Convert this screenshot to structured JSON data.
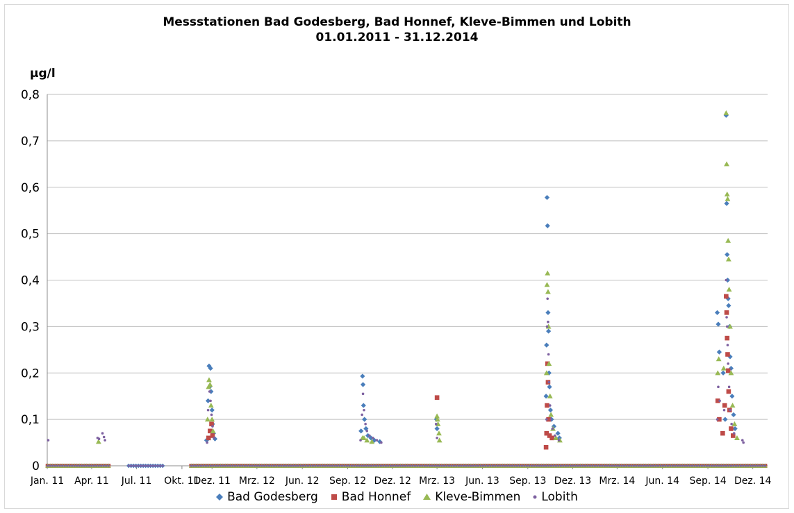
{
  "chart_data": {
    "type": "scatter",
    "title": "Messstationen Bad Godesberg, Bad Honnef, Kleve-Bimmen und Lobith",
    "subtitle": "01.01.2011 - 31.12.2014",
    "ylabel": "µg/l",
    "ylim": [
      0,
      0.8
    ],
    "yticks": [
      "0",
      "0,1",
      "0,2",
      "0,3",
      "0,4",
      "0,5",
      "0,6",
      "0,7",
      "0,8"
    ],
    "xlim": [
      "2011-01-01",
      "2014-12-31"
    ],
    "xticks": [
      {
        "label": "Jan. 11",
        "date": "2011-01-01"
      },
      {
        "label": "Apr. 11",
        "date": "2011-04-01"
      },
      {
        "label": "Jul. 11",
        "date": "2011-07-01"
      },
      {
        "label": "Okt. 11",
        "date": "2011-10-01"
      },
      {
        "label": "Dez. 11",
        "date": "2011-12-01"
      },
      {
        "label": "Mrz. 12",
        "date": "2012-03-01"
      },
      {
        "label": "Jun. 12",
        "date": "2012-06-01"
      },
      {
        "label": "Sep. 12",
        "date": "2012-09-01"
      },
      {
        "label": "Dez. 12",
        "date": "2012-12-01"
      },
      {
        "label": "Mrz. 13",
        "date": "2013-03-01"
      },
      {
        "label": "Jun. 13",
        "date": "2013-06-01"
      },
      {
        "label": "Sep. 13",
        "date": "2013-09-01"
      },
      {
        "label": "Dez. 13",
        "date": "2013-12-01"
      },
      {
        "label": "Mrz. 14",
        "date": "2014-03-01"
      },
      {
        "label": "Jun. 14",
        "date": "2014-06-01"
      },
      {
        "label": "Sep. 14",
        "date": "2014-09-01"
      },
      {
        "label": "Dez. 14",
        "date": "2014-12-01"
      }
    ],
    "grid": "horizontal",
    "legend_position": "bottom",
    "series": [
      {
        "name": "Bad Godesberg",
        "marker": "diamond",
        "color": "#4a7ebb",
        "zero_ranges": [
          [
            "2011-01-02",
            "2011-05-10"
          ],
          [
            "2011-06-15",
            "2011-08-25"
          ],
          [
            "2011-10-20",
            "2014-12-30"
          ]
        ],
        "points": [
          [
            "2011-11-20",
            0.055
          ],
          [
            "2011-11-23",
            0.14
          ],
          [
            "2011-11-25",
            0.215
          ],
          [
            "2011-11-26",
            0.17
          ],
          [
            "2011-11-28",
            0.21
          ],
          [
            "2011-11-29",
            0.16
          ],
          [
            "2011-12-01",
            0.12
          ],
          [
            "2011-12-02",
            0.09
          ],
          [
            "2011-12-04",
            0.07
          ],
          [
            "2011-12-07",
            0.058
          ],
          [
            "2012-09-28",
            0.075
          ],
          [
            "2012-10-01",
            0.193
          ],
          [
            "2012-10-02",
            0.175
          ],
          [
            "2012-10-03",
            0.13
          ],
          [
            "2012-10-05",
            0.1
          ],
          [
            "2012-10-08",
            0.08
          ],
          [
            "2012-10-12",
            0.065
          ],
          [
            "2012-10-18",
            0.06
          ],
          [
            "2012-10-25",
            0.055
          ],
          [
            "2012-11-05",
            0.052
          ],
          [
            "2013-02-28",
            0.1
          ],
          [
            "2013-03-01",
            0.08
          ],
          [
            "2013-10-08",
            0.15
          ],
          [
            "2013-10-09",
            0.26
          ],
          [
            "2013-10-10",
            0.578
          ],
          [
            "2013-10-11",
            0.517
          ],
          [
            "2013-10-12",
            0.33
          ],
          [
            "2013-10-13",
            0.29
          ],
          [
            "2013-10-14",
            0.2
          ],
          [
            "2013-10-15",
            0.17
          ],
          [
            "2013-10-17",
            0.12
          ],
          [
            "2013-10-19",
            0.1
          ],
          [
            "2013-10-24",
            0.085
          ],
          [
            "2013-11-01",
            0.07
          ],
          [
            "2013-11-04",
            0.06
          ],
          [
            "2014-09-20",
            0.33
          ],
          [
            "2014-09-22",
            0.305
          ],
          [
            "2014-09-24",
            0.245
          ],
          [
            "2014-10-02",
            0.2
          ],
          [
            "2014-10-06",
            0.1
          ],
          [
            "2014-10-08",
            0.755
          ],
          [
            "2014-10-09",
            0.565
          ],
          [
            "2014-10-10",
            0.455
          ],
          [
            "2014-10-11",
            0.4
          ],
          [
            "2014-10-12",
            0.36
          ],
          [
            "2014-10-13",
            0.345
          ],
          [
            "2014-10-15",
            0.3
          ],
          [
            "2014-10-16",
            0.235
          ],
          [
            "2014-10-18",
            0.21
          ],
          [
            "2014-10-20",
            0.15
          ],
          [
            "2014-10-23",
            0.11
          ],
          [
            "2014-10-26",
            0.08
          ]
        ]
      },
      {
        "name": "Bad Honnef",
        "marker": "square",
        "color": "#be4b48",
        "zero_ranges": [
          [
            "2011-01-02",
            "2011-05-10"
          ],
          [
            "2011-10-20",
            "2014-12-30"
          ]
        ],
        "points": [
          [
            "2011-11-24",
            0.06
          ],
          [
            "2011-11-27",
            0.075
          ],
          [
            "2011-11-30",
            0.09
          ],
          [
            "2011-12-02",
            0.065
          ],
          [
            "2013-03-01",
            0.147
          ],
          [
            "2013-10-08",
            0.04
          ],
          [
            "2013-10-09",
            0.07
          ],
          [
            "2013-10-10",
            0.13
          ],
          [
            "2013-10-11",
            0.22
          ],
          [
            "2013-10-12",
            0.18
          ],
          [
            "2013-10-13",
            0.1
          ],
          [
            "2013-10-15",
            0.065
          ],
          [
            "2013-10-20",
            0.06
          ],
          [
            "2014-09-21",
            0.14
          ],
          [
            "2014-09-24",
            0.1
          ],
          [
            "2014-10-01",
            0.07
          ],
          [
            "2014-10-05",
            0.13
          ],
          [
            "2014-10-08",
            0.365
          ],
          [
            "2014-10-09",
            0.33
          ],
          [
            "2014-10-10",
            0.275
          ],
          [
            "2014-10-11",
            0.24
          ],
          [
            "2014-10-12",
            0.205
          ],
          [
            "2014-10-13",
            0.16
          ],
          [
            "2014-10-15",
            0.12
          ],
          [
            "2014-10-18",
            0.08
          ],
          [
            "2014-10-22",
            0.065
          ]
        ]
      },
      {
        "name": "Kleve-Bimmen",
        "marker": "triangle",
        "color": "#98b954",
        "zero_ranges": [
          [
            "2011-01-02",
            "2011-05-10"
          ],
          [
            "2011-10-20",
            "2014-12-30"
          ]
        ],
        "points": [
          [
            "2011-04-15",
            0.052
          ],
          [
            "2011-11-22",
            0.1
          ],
          [
            "2011-11-24",
            0.17
          ],
          [
            "2011-11-25",
            0.185
          ],
          [
            "2011-11-27",
            0.175
          ],
          [
            "2011-11-29",
            0.13
          ],
          [
            "2011-12-01",
            0.1
          ],
          [
            "2011-12-03",
            0.075
          ],
          [
            "2012-10-01",
            0.06
          ],
          [
            "2012-10-04",
            0.06
          ],
          [
            "2012-10-10",
            0.055
          ],
          [
            "2012-10-20",
            0.052
          ],
          [
            "2013-03-01",
            0.107
          ],
          [
            "2013-03-02",
            0.1
          ],
          [
            "2013-03-03",
            0.09
          ],
          [
            "2013-03-05",
            0.07
          ],
          [
            "2013-03-06",
            0.055
          ],
          [
            "2013-10-09",
            0.2
          ],
          [
            "2013-10-10",
            0.39
          ],
          [
            "2013-10-11",
            0.415
          ],
          [
            "2013-10-12",
            0.375
          ],
          [
            "2013-10-13",
            0.3
          ],
          [
            "2013-10-14",
            0.22
          ],
          [
            "2013-10-16",
            0.15
          ],
          [
            "2013-10-18",
            0.11
          ],
          [
            "2013-10-22",
            0.08
          ],
          [
            "2013-10-28",
            0.06
          ],
          [
            "2013-11-05",
            0.055
          ],
          [
            "2014-09-21",
            0.2
          ],
          [
            "2014-09-23",
            0.23
          ],
          [
            "2014-10-03",
            0.21
          ],
          [
            "2014-10-08",
            0.76
          ],
          [
            "2014-10-09",
            0.65
          ],
          [
            "2014-10-10",
            0.585
          ],
          [
            "2014-10-11",
            0.575
          ],
          [
            "2014-10-12",
            0.485
          ],
          [
            "2014-10-13",
            0.445
          ],
          [
            "2014-10-14",
            0.38
          ],
          [
            "2014-10-16",
            0.3
          ],
          [
            "2014-10-18",
            0.2
          ],
          [
            "2014-10-21",
            0.13
          ],
          [
            "2014-10-25",
            0.09
          ],
          [
            "2014-10-30",
            0.06
          ]
        ]
      },
      {
        "name": "Lobith",
        "marker": "dot",
        "color": "#7d60a0",
        "zero_ranges": [
          [
            "2011-01-02",
            "2011-05-10"
          ],
          [
            "2011-06-15",
            "2011-08-25"
          ],
          [
            "2011-10-20",
            "2014-12-30"
          ]
        ],
        "points": [
          [
            "2011-01-03",
            0.055
          ],
          [
            "2011-04-13",
            0.06
          ],
          [
            "2011-04-16",
            0.058
          ],
          [
            "2011-04-23",
            0.07
          ],
          [
            "2011-04-26",
            0.062
          ],
          [
            "2011-04-28",
            0.055
          ],
          [
            "2011-11-21",
            0.05
          ],
          [
            "2011-11-23",
            0.12
          ],
          [
            "2011-11-26",
            0.16
          ],
          [
            "2011-11-28",
            0.14
          ],
          [
            "2011-11-30",
            0.11
          ],
          [
            "2011-12-02",
            0.085
          ],
          [
            "2011-12-05",
            0.06
          ],
          [
            "2012-09-27",
            0.055
          ],
          [
            "2012-09-30",
            0.11
          ],
          [
            "2012-10-02",
            0.155
          ],
          [
            "2012-10-04",
            0.12
          ],
          [
            "2012-10-07",
            0.09
          ],
          [
            "2012-10-10",
            0.075
          ],
          [
            "2012-10-15",
            0.065
          ],
          [
            "2012-10-22",
            0.06
          ],
          [
            "2012-10-30",
            0.055
          ],
          [
            "2012-11-08",
            0.05
          ],
          [
            "2013-02-27",
            0.09
          ],
          [
            "2013-03-01",
            0.06
          ],
          [
            "2013-10-09",
            0.1
          ],
          [
            "2013-10-10",
            0.3
          ],
          [
            "2013-10-11",
            0.36
          ],
          [
            "2013-10-12",
            0.31
          ],
          [
            "2013-10-13",
            0.24
          ],
          [
            "2013-10-14",
            0.18
          ],
          [
            "2013-10-16",
            0.13
          ],
          [
            "2013-10-18",
            0.1
          ],
          [
            "2013-10-21",
            0.08
          ],
          [
            "2013-10-26",
            0.065
          ],
          [
            "2013-11-03",
            0.055
          ],
          [
            "2014-09-20",
            0.1
          ],
          [
            "2014-09-22",
            0.17
          ],
          [
            "2014-09-25",
            0.14
          ],
          [
            "2014-10-04",
            0.12
          ],
          [
            "2014-10-08",
            0.4
          ],
          [
            "2014-10-09",
            0.32
          ],
          [
            "2014-10-10",
            0.3
          ],
          [
            "2014-10-11",
            0.26
          ],
          [
            "2014-10-12",
            0.22
          ],
          [
            "2014-10-14",
            0.17
          ],
          [
            "2014-10-16",
            0.12
          ],
          [
            "2014-10-19",
            0.09
          ],
          [
            "2014-10-24",
            0.07
          ],
          [
            "2014-11-10",
            0.055
          ],
          [
            "2014-11-12",
            0.05
          ]
        ]
      }
    ]
  }
}
